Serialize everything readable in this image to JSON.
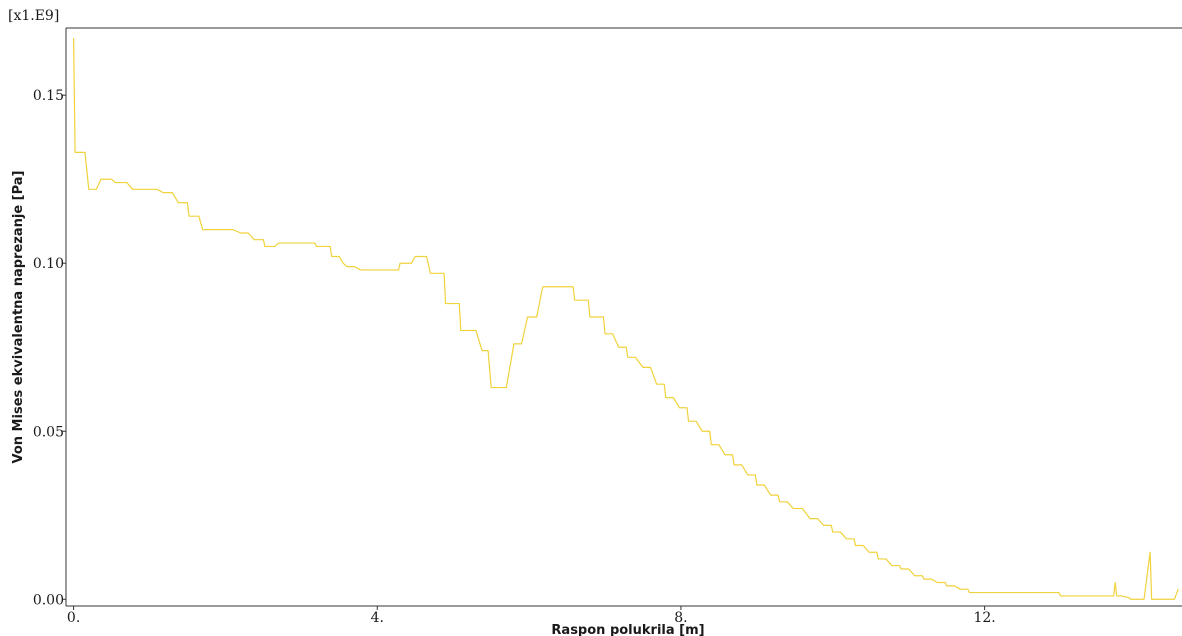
{
  "chart_data": {
    "type": "line",
    "scale_label": "[x1.E9]",
    "xlabel": "Raspon polukrila  [m]",
    "ylabel": "Von Mises ekvivalentna naprezanje [Pa]",
    "xlim": [
      -0.1,
      14.6
    ],
    "ylim": [
      -0.002,
      0.17
    ],
    "x_ticks": [
      0,
      4,
      8,
      12
    ],
    "x_tick_labels": [
      "0.",
      "4.",
      "8.",
      "12."
    ],
    "y_ticks": [
      0.0,
      0.05,
      0.1,
      0.15
    ],
    "y_tick_labels": [
      "0.00",
      "0.05",
      "0.10",
      "0.15"
    ],
    "grid": false,
    "series": [
      {
        "color": "#f0d23c",
        "x": [
          0.0,
          0.02,
          0.04,
          0.06,
          0.1,
          0.15,
          0.2,
          0.24,
          0.26,
          0.3,
          0.36,
          0.38,
          0.4,
          0.45,
          0.5,
          0.55,
          0.6,
          0.65,
          0.7,
          0.78,
          0.8,
          0.85,
          0.9,
          0.98,
          1.0,
          1.05,
          1.1,
          1.18,
          1.2,
          1.28,
          1.3,
          1.38,
          1.4,
          1.48,
          1.5,
          1.52,
          1.58,
          1.6,
          1.65,
          1.7,
          1.78,
          1.8,
          1.9,
          2.0,
          2.1,
          2.2,
          2.28,
          2.3,
          2.38,
          2.4,
          2.5,
          2.52,
          2.6,
          2.65,
          2.7,
          2.78,
          2.8,
          2.9,
          3.0,
          3.1,
          3.18,
          3.2,
          3.3,
          3.38,
          3.4,
          3.5,
          3.55,
          3.6,
          3.65,
          3.7,
          3.78,
          3.8,
          3.9,
          4.0,
          4.1,
          4.2,
          4.28,
          4.3,
          4.38,
          4.4,
          4.45,
          4.5,
          4.58,
          4.6,
          4.65,
          4.7,
          4.78,
          4.8,
          4.88,
          4.9,
          4.98,
          5.0,
          5.08,
          5.1,
          5.18,
          5.2,
          5.3,
          5.38,
          5.4,
          5.46,
          5.5,
          5.56,
          5.62,
          5.66,
          5.7,
          5.8,
          5.86,
          5.9,
          5.98,
          6.0,
          6.05,
          6.1,
          6.18,
          6.2,
          6.3,
          6.38,
          6.4,
          6.48,
          6.5,
          6.58,
          6.6,
          6.7,
          6.78,
          6.8,
          6.9,
          6.98,
          7.0,
          7.08,
          7.1,
          7.18,
          7.2,
          7.28,
          7.3,
          7.38,
          7.4,
          7.5,
          7.58,
          7.6,
          7.68,
          7.7,
          7.78,
          7.8,
          7.88,
          7.9,
          7.98,
          8.0,
          8.08,
          8.1,
          8.18,
          8.2,
          8.28,
          8.3,
          8.38,
          8.4,
          8.48,
          8.5,
          8.58,
          8.6,
          8.68,
          8.7,
          8.78,
          8.8,
          8.88,
          8.9,
          8.98,
          9.0,
          9.08,
          9.1,
          9.18,
          9.2,
          9.28,
          9.3,
          9.38,
          9.4,
          9.48,
          9.5,
          9.6,
          9.7,
          9.78,
          9.8,
          9.88,
          9.9,
          9.98,
          10.0,
          10.08,
          10.1,
          10.18,
          10.2,
          10.28,
          10.3,
          10.38,
          10.4,
          10.48,
          10.5,
          10.58,
          10.6,
          10.68,
          10.7,
          10.78,
          10.8,
          10.88,
          10.9,
          10.98,
          11.0,
          11.08,
          11.1,
          11.18,
          11.2,
          11.28,
          11.3,
          11.38,
          11.4,
          11.48,
          11.5,
          11.58,
          11.6,
          11.68,
          11.7,
          11.78,
          11.8,
          11.88,
          11.9,
          11.98,
          12.0,
          12.08,
          12.1,
          12.18,
          12.2,
          12.28,
          12.3,
          12.38,
          12.4,
          12.48,
          12.5,
          12.58,
          12.6,
          12.68,
          12.7,
          12.78,
          12.8,
          12.88,
          12.9,
          12.98,
          13.0,
          13.08,
          13.1,
          13.18,
          13.2,
          13.28,
          13.3,
          13.38,
          13.4,
          13.48,
          13.5,
          13.58,
          13.6,
          13.66,
          13.68,
          13.7,
          13.72,
          13.74,
          13.76,
          13.8,
          13.9,
          13.92,
          13.96,
          14.0,
          14.08,
          14.1,
          14.18,
          14.2,
          14.3,
          14.42,
          14.5,
          14.55
        ],
        "y": [
          0.167,
          0.133,
          0.133,
          0.133,
          0.133,
          0.133,
          0.122,
          0.122,
          0.122,
          0.122,
          0.125,
          0.125,
          0.125,
          0.125,
          0.125,
          0.124,
          0.124,
          0.124,
          0.124,
          0.122,
          0.122,
          0.122,
          0.122,
          0.122,
          0.122,
          0.122,
          0.122,
          0.121,
          0.121,
          0.121,
          0.121,
          0.118,
          0.118,
          0.118,
          0.118,
          0.114,
          0.114,
          0.114,
          0.114,
          0.11,
          0.11,
          0.11,
          0.11,
          0.11,
          0.11,
          0.109,
          0.109,
          0.109,
          0.107,
          0.107,
          0.107,
          0.105,
          0.105,
          0.105,
          0.106,
          0.106,
          0.106,
          0.106,
          0.106,
          0.106,
          0.106,
          0.105,
          0.105,
          0.105,
          0.102,
          0.102,
          0.1,
          0.099,
          0.099,
          0.099,
          0.098,
          0.098,
          0.098,
          0.098,
          0.098,
          0.098,
          0.098,
          0.1,
          0.1,
          0.1,
          0.1,
          0.102,
          0.102,
          0.102,
          0.102,
          0.097,
          0.097,
          0.097,
          0.097,
          0.088,
          0.088,
          0.088,
          0.088,
          0.08,
          0.08,
          0.08,
          0.08,
          0.074,
          0.074,
          0.074,
          0.063,
          0.063,
          0.063,
          0.063,
          0.063,
          0.076,
          0.076,
          0.076,
          0.084,
          0.084,
          0.084,
          0.084,
          0.093,
          0.093,
          0.093,
          0.093,
          0.093,
          0.093,
          0.093,
          0.093,
          0.089,
          0.089,
          0.089,
          0.084,
          0.084,
          0.084,
          0.079,
          0.079,
          0.079,
          0.075,
          0.075,
          0.075,
          0.072,
          0.072,
          0.072,
          0.069,
          0.069,
          0.069,
          0.064,
          0.064,
          0.064,
          0.06,
          0.06,
          0.06,
          0.057,
          0.057,
          0.057,
          0.053,
          0.053,
          0.053,
          0.05,
          0.05,
          0.05,
          0.046,
          0.046,
          0.046,
          0.043,
          0.043,
          0.043,
          0.04,
          0.04,
          0.04,
          0.037,
          0.037,
          0.037,
          0.034,
          0.034,
          0.034,
          0.031,
          0.031,
          0.031,
          0.029,
          0.029,
          0.029,
          0.027,
          0.027,
          0.027,
          0.024,
          0.024,
          0.024,
          0.022,
          0.022,
          0.022,
          0.02,
          0.02,
          0.02,
          0.018,
          0.018,
          0.018,
          0.016,
          0.016,
          0.016,
          0.014,
          0.014,
          0.014,
          0.012,
          0.012,
          0.012,
          0.01,
          0.01,
          0.01,
          0.009,
          0.009,
          0.009,
          0.007,
          0.007,
          0.007,
          0.006,
          0.006,
          0.006,
          0.005,
          0.005,
          0.005,
          0.004,
          0.004,
          0.004,
          0.003,
          0.003,
          0.003,
          0.002,
          0.002,
          0.002,
          0.002,
          0.002,
          0.002,
          0.002,
          0.002,
          0.002,
          0.002,
          0.002,
          0.002,
          0.002,
          0.002,
          0.002,
          0.002,
          0.002,
          0.002,
          0.002,
          0.002,
          0.002,
          0.002,
          0.002,
          0.002,
          0.001,
          0.001,
          0.001,
          0.001,
          0.001,
          0.001,
          0.001,
          0.001,
          0.001,
          0.001,
          0.001,
          0.001,
          0.001,
          0.001,
          0.001,
          0.001,
          0.005,
          0.001,
          0.001,
          0.001,
          0.0005,
          0.0,
          0.0,
          0.0,
          0.0,
          0.0,
          0.014,
          0.0,
          0.0,
          0.0,
          0.0,
          0.003
        ]
      }
    ]
  }
}
